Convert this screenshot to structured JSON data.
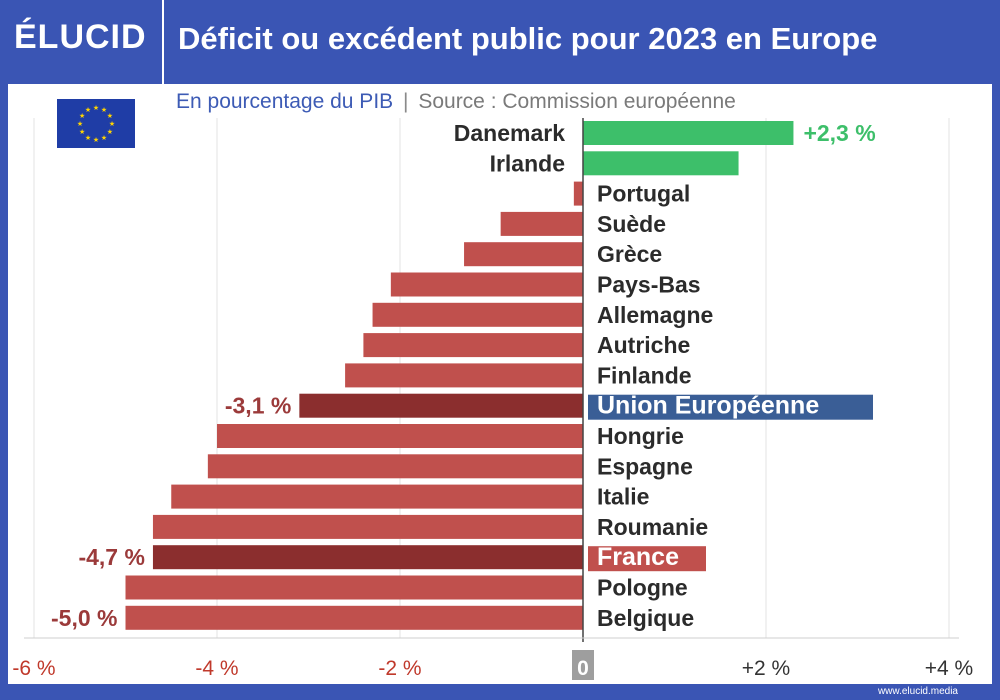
{
  "header": {
    "logo": "ÉLUCID",
    "title": "Déficit ou excédent public pour 2023 en Europe"
  },
  "subtitle": {
    "unit": "En pourcentage du PIB",
    "separator": "|",
    "source": "Source : Commission européenne"
  },
  "flag_icon": "eu-flag-icon",
  "footer": {
    "url": "www.elucid.media"
  },
  "colors": {
    "brand": "#3a55b4",
    "positive": "#3dbf6a",
    "negative": "#c0504d",
    "highlight_negative": "#8b2e2e",
    "eu_label_bg": "#3a5e96",
    "france_label_bg": "#c0504d",
    "zero_box": "#9e9e9e"
  },
  "chart_data": {
    "type": "bar",
    "orientation": "horizontal",
    "xlim": [
      -6,
      4
    ],
    "grid": true,
    "ticks": [
      {
        "value": -6,
        "label": "-6 %"
      },
      {
        "value": -4,
        "label": "-4 %"
      },
      {
        "value": -2,
        "label": "-2 %"
      },
      {
        "value": 0,
        "label": "0"
      },
      {
        "value": 2,
        "label": "+2 %"
      },
      {
        "value": 4,
        "label": "+4 %"
      }
    ],
    "categories": [
      "Danemark",
      "Irlande",
      "Portugal",
      "Suède",
      "Grèce",
      "Pays-Bas",
      "Allemagne",
      "Autriche",
      "Finlande",
      "Union Européenne",
      "Hongrie",
      "Espagne",
      "Italie",
      "Roumanie",
      "France",
      "Pologne",
      "Belgique"
    ],
    "values": [
      2.3,
      1.7,
      -0.1,
      -0.9,
      -1.3,
      -2.1,
      -2.3,
      -2.4,
      -2.6,
      -3.1,
      -4.0,
      -4.1,
      -4.5,
      -4.7,
      -4.7,
      -5.0,
      -5.0
    ],
    "highlighted": [
      "Union Européenne",
      "France"
    ],
    "data_labels": [
      {
        "category": "Danemark",
        "text": "+2,3 %"
      },
      {
        "category": "Union Européenne",
        "text": "-3,1 %"
      },
      {
        "category": "France",
        "text": "-4,7 %"
      },
      {
        "category": "Belgique",
        "text": "-5,0 %"
      }
    ]
  }
}
